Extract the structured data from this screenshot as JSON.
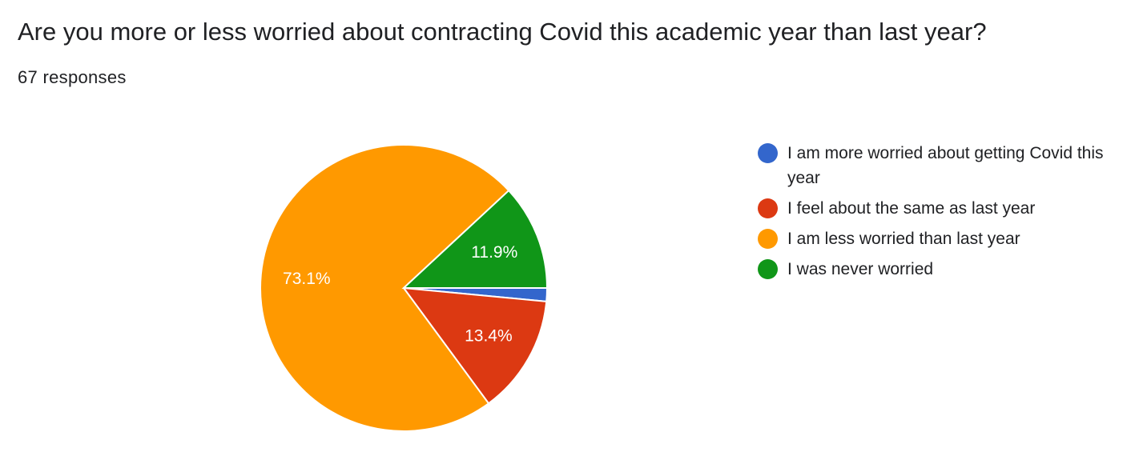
{
  "header": {
    "title": "Are you more or less worried about contracting Covid this academic year than last year?",
    "responses": "67 responses"
  },
  "chart_data": {
    "type": "pie",
    "title": "Are you more or less worried about contracting Covid this academic year than last year?",
    "total_responses": 67,
    "slices": [
      {
        "label": "I am more worried about getting Covid this year",
        "value": 1.5,
        "display": "",
        "color": "#3366cc"
      },
      {
        "label": "I feel about the same as last year",
        "value": 13.4,
        "display": "13.4%",
        "color": "#dc3912"
      },
      {
        "label": "I am less worried than last year",
        "value": 73.1,
        "display": "73.1%",
        "color": "#ff9900"
      },
      {
        "label": "I was never worried",
        "value": 11.9,
        "display": "11.9%",
        "color": "#109618"
      }
    ],
    "legend_position": "right"
  }
}
